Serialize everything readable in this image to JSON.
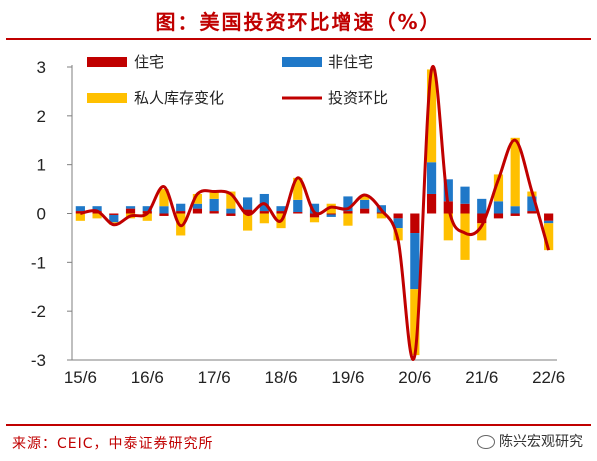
{
  "title": "图：美国投资环比增速（%）",
  "source": "来源：CEIC，中泰证券研究所",
  "watermark": "陈兴宏观研究",
  "chart_data": {
    "type": "bar",
    "categories": [
      "15/6",
      "15/9",
      "15/12",
      "16/3",
      "16/6",
      "16/9",
      "16/12",
      "17/3",
      "17/6",
      "17/9",
      "17/12",
      "18/3",
      "18/6",
      "18/9",
      "18/12",
      "19/3",
      "19/6",
      "19/9",
      "19/12",
      "20/3",
      "20/6",
      "20/9",
      "20/12",
      "21/3",
      "21/6",
      "21/9",
      "21/12",
      "22/3",
      "22/6"
    ],
    "xtick_labels": [
      "15/6",
      "16/6",
      "17/6",
      "18/6",
      "19/6",
      "20/6",
      "21/6",
      "22/6"
    ],
    "ylim": [
      -3,
      3
    ],
    "yticks": [
      -3,
      -2,
      -1,
      0,
      1,
      2,
      3
    ],
    "legend_position": "top",
    "series": [
      {
        "name": "住宅",
        "kind": "bar",
        "color": "#c00000",
        "values": [
          0.05,
          0.05,
          -0.03,
          0.1,
          0.05,
          -0.05,
          0.05,
          0.1,
          0.05,
          -0.05,
          0.08,
          0.05,
          0.05,
          0.03,
          -0.08,
          -0.02,
          0.05,
          0.1,
          0.02,
          -0.1,
          -0.4,
          0.4,
          0.25,
          0.2,
          -0.2,
          -0.1,
          -0.05,
          0.05,
          -0.15
        ]
      },
      {
        "name": "非住宅",
        "kind": "bar",
        "color": "#1f78c8",
        "values": [
          0.1,
          0.1,
          -0.15,
          0.05,
          0.1,
          0.15,
          0.15,
          0.1,
          0.25,
          0.1,
          0.25,
          0.35,
          0.1,
          0.25,
          0.2,
          -0.05,
          0.3,
          0.18,
          0.15,
          -0.2,
          -1.15,
          0.65,
          0.45,
          0.35,
          0.3,
          0.25,
          0.15,
          0.3,
          -0.05
        ]
      },
      {
        "name": "私人库存变化",
        "kind": "bar",
        "color": "#ffc000",
        "values": [
          -0.15,
          -0.1,
          -0.05,
          -0.1,
          -0.15,
          0.35,
          -0.45,
          0.2,
          0.15,
          0.35,
          -0.35,
          -0.2,
          -0.3,
          0.45,
          -0.1,
          0.2,
          -0.25,
          0.1,
          -0.1,
          -0.25,
          -1.35,
          1.9,
          -0.55,
          -0.95,
          -0.35,
          0.55,
          1.4,
          0.1,
          -0.55
        ]
      },
      {
        "name": "投资环比",
        "kind": "line",
        "color": "#c00000",
        "values": [
          0.0,
          0.05,
          -0.23,
          -0.05,
          0.0,
          0.55,
          -0.25,
          0.4,
          0.45,
          0.4,
          -0.02,
          0.2,
          -0.15,
          0.73,
          0.02,
          0.13,
          0.1,
          0.38,
          0.07,
          -0.55,
          -2.9,
          2.95,
          0.15,
          -0.4,
          -0.25,
          0.7,
          1.5,
          0.45,
          -0.75
        ]
      }
    ]
  }
}
